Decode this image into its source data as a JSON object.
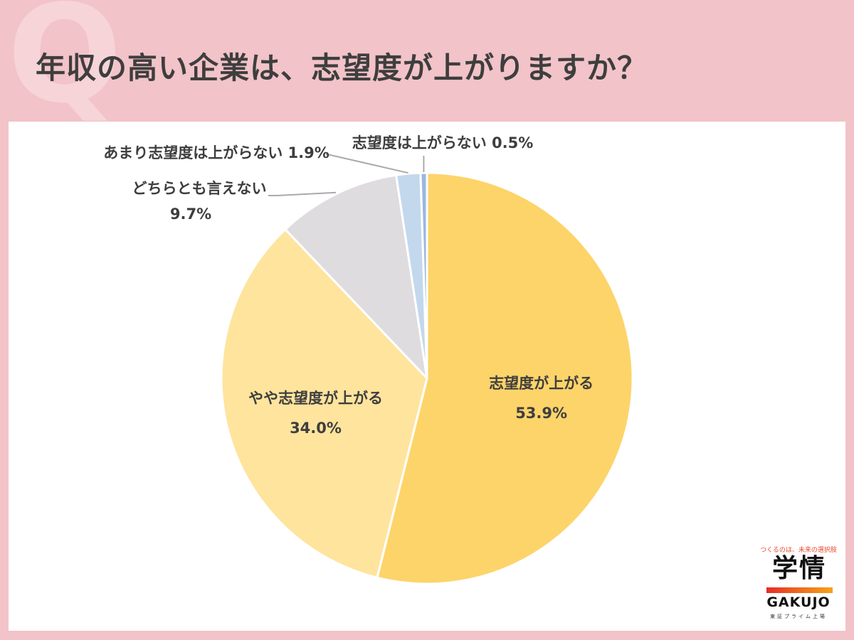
{
  "header": {
    "q_mark": "Q",
    "title": "年収の高い企業は、志望度が上がりますか？"
  },
  "chart_data": {
    "type": "pie",
    "title": "年収の高い企業は、志望度が上がりますか？",
    "slices": [
      {
        "label": "志望度が上がる",
        "value": 53.9,
        "value_label": "53.9%",
        "color": "#fdd46a"
      },
      {
        "label": "やや志望度が上がる",
        "value": 34.0,
        "value_label": "34.0%",
        "color": "#fee49d"
      },
      {
        "label": "どちらとも言えない",
        "value": 9.7,
        "value_label": "9.7%",
        "color": "#dfdcdf"
      },
      {
        "label": "あまり志望度は上がらない",
        "value": 1.9,
        "value_label": "1.9%",
        "color": "#c3d8ec"
      },
      {
        "label": "志望度は上がらない",
        "value": 0.5,
        "value_label": "0.5%",
        "color": "#9bb7e0"
      }
    ],
    "start_angle": "12 o'clock",
    "direction": "clockwise",
    "legend": "none"
  },
  "logo": {
    "tagline": "つくるのは、未来の選択肢",
    "kanji": "学情",
    "word": "GAKUJO",
    "sub": "東証プライム上場"
  },
  "colors": {
    "background": "#f2c3c8",
    "card": "#ffffff",
    "title_text": "#3e3e3e",
    "label_text": "#3e3e3e",
    "leader_line": "#aaaaaa"
  }
}
